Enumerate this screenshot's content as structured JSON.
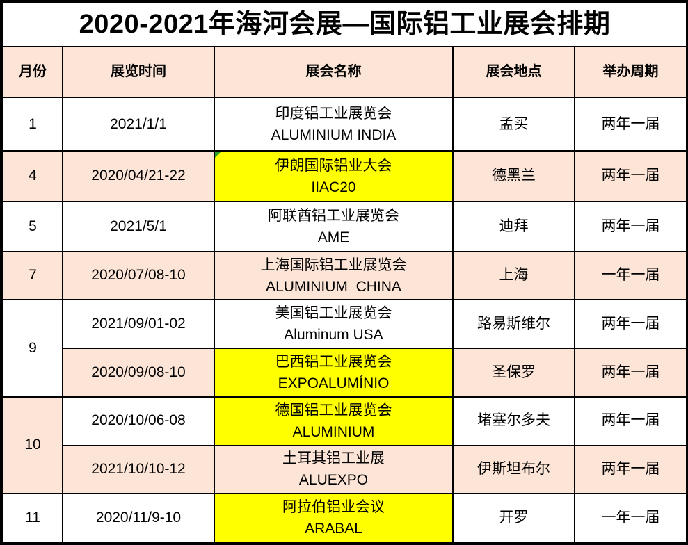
{
  "title": "2020-2021年海河会展—国际铝工业展会排期",
  "columns": {
    "month": "月份",
    "date": "展览时间",
    "name": "展会名称",
    "location": "展会地点",
    "cycle": "举办周期"
  },
  "colors": {
    "peach": "#fce4d6",
    "yellow": "#ffff00",
    "white": "#ffffff",
    "border": "#000000",
    "indicator_green": "#2ea12e"
  },
  "rows": [
    {
      "month": "1",
      "date": "2021/1/1",
      "name_cn": "印度铝工业展览会",
      "name_en": "ALUMINIUM INDIA",
      "location": "孟买",
      "cycle": "两年一届"
    },
    {
      "month": "4",
      "date": "2020/04/21-22",
      "name_cn": "伊朗国际铝业大会",
      "name_en": "IIAC20",
      "location": "德黑兰",
      "cycle": "两年一届"
    },
    {
      "month": "5",
      "date": "2021/5/1",
      "name_cn": "阿联酋铝工业展览会",
      "name_en": "AME",
      "location": "迪拜",
      "cycle": "两年一届"
    },
    {
      "month": "7",
      "date": "2020/07/08-10",
      "name_cn": "上海国际铝工业展览会",
      "name_en": "ALUMINIUM  CHINA",
      "location": "上海",
      "cycle": "一年一届"
    },
    {
      "month": "9",
      "date": "2021/09/01-02",
      "name_cn": "美国铝工业展览会",
      "name_en": "Aluminum USA",
      "location": "路易斯维尔",
      "cycle": "两年一届"
    },
    {
      "month": "9",
      "date": "2020/09/08-10",
      "name_cn": "巴西铝工业展览会",
      "name_en": "EXPOALUMÍNIO",
      "location": "圣保罗",
      "cycle": "两年一届"
    },
    {
      "month": "10",
      "date": "2020/10/06-08",
      "name_cn": "德国铝工业展览会",
      "name_en": "ALUMINIUM",
      "location": "堵塞尔多夫",
      "cycle": "两年一届"
    },
    {
      "month": "10",
      "date": "2021/10/10-12",
      "name_cn": "土耳其铝工业展",
      "name_en": "ALUEXPO",
      "location": "伊斯坦布尔",
      "cycle": "两年一届"
    },
    {
      "month": "11",
      "date": "2020/11/9-10",
      "name_cn": "阿拉伯铝业会议",
      "name_en": "ARABAL",
      "location": "开罗",
      "cycle": "一年一届"
    }
  ]
}
